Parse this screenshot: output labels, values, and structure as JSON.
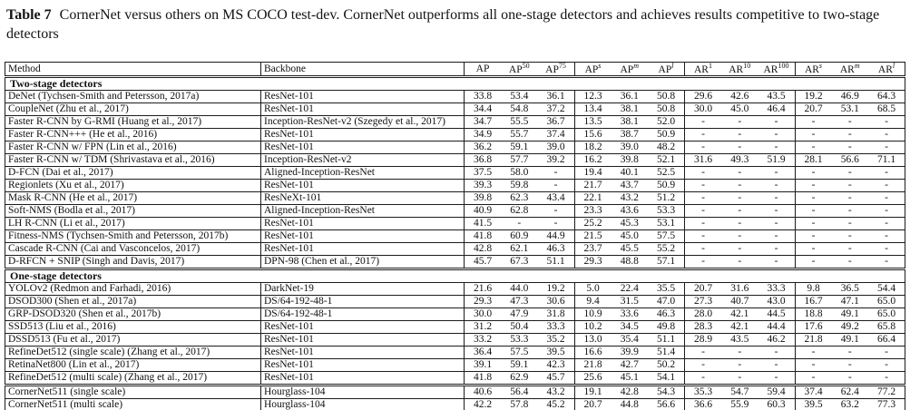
{
  "caption": {
    "label": "Table 7",
    "text": "CornerNet versus others on MS COCO test-dev. CornerNet outperforms all one-stage detectors and achieves results competitive to two-stage detectors"
  },
  "table": {
    "text_columns": [
      {
        "label": "Method"
      },
      {
        "label": "Backbone"
      }
    ],
    "metric_columns": [
      {
        "base": "AP",
        "sup": ""
      },
      {
        "base": "AP",
        "sup": "50"
      },
      {
        "base": "AP",
        "sup": "75"
      },
      {
        "base": "AP",
        "sup": "s"
      },
      {
        "base": "AP",
        "sup": "m"
      },
      {
        "base": "AP",
        "sup": "l"
      },
      {
        "base": "AR",
        "sup": "1"
      },
      {
        "base": "AR",
        "sup": "10"
      },
      {
        "base": "AR",
        "sup": "100"
      },
      {
        "base": "AR",
        "sup": "s"
      },
      {
        "base": "AR",
        "sup": "m"
      },
      {
        "base": "AR",
        "sup": "l"
      }
    ],
    "sections": [
      {
        "header": "Two-stage detectors",
        "rows": [
          {
            "method": "DeNet (Tychsen-Smith and Petersson, 2017a)",
            "backbone": "ResNet-101",
            "values": [
              "33.8",
              "53.4",
              "36.1",
              "12.3",
              "36.1",
              "50.8",
              "29.6",
              "42.6",
              "43.5",
              "19.2",
              "46.9",
              "64.3"
            ]
          },
          {
            "method": "CoupleNet (Zhu et al., 2017)",
            "backbone": "ResNet-101",
            "values": [
              "34.4",
              "54.8",
              "37.2",
              "13.4",
              "38.1",
              "50.8",
              "30.0",
              "45.0",
              "46.4",
              "20.7",
              "53.1",
              "68.5"
            ]
          },
          {
            "method": "Faster R-CNN by G-RMI (Huang et al., 2017)",
            "backbone": "Inception-ResNet-v2 (Szegedy et al., 2017)",
            "values": [
              "34.7",
              "55.5",
              "36.7",
              "13.5",
              "38.1",
              "52.0",
              "-",
              "-",
              "-",
              "-",
              "-",
              "-"
            ]
          },
          {
            "method": "Faster R-CNN+++ (He et al., 2016)",
            "backbone": "ResNet-101",
            "values": [
              "34.9",
              "55.7",
              "37.4",
              "15.6",
              "38.7",
              "50.9",
              "-",
              "-",
              "-",
              "-",
              "-",
              "-"
            ]
          },
          {
            "method": "Faster R-CNN w/ FPN (Lin et al., 2016)",
            "backbone": "ResNet-101",
            "values": [
              "36.2",
              "59.1",
              "39.0",
              "18.2",
              "39.0",
              "48.2",
              "-",
              "-",
              "-",
              "-",
              "-",
              "-"
            ]
          },
          {
            "method": "Faster R-CNN w/ TDM (Shrivastava et al., 2016)",
            "backbone": "Inception-ResNet-v2",
            "values": [
              "36.8",
              "57.7",
              "39.2",
              "16.2",
              "39.8",
              "52.1",
              "31.6",
              "49.3",
              "51.9",
              "28.1",
              "56.6",
              "71.1"
            ]
          },
          {
            "method": "D-FCN (Dai et al., 2017)",
            "backbone": "Aligned-Inception-ResNet",
            "values": [
              "37.5",
              "58.0",
              "-",
              "19.4",
              "40.1",
              "52.5",
              "-",
              "-",
              "-",
              "-",
              "-",
              "-"
            ]
          },
          {
            "method": "Regionlets (Xu et al., 2017)",
            "backbone": "ResNet-101",
            "values": [
              "39.3",
              "59.8",
              "-",
              "21.7",
              "43.7",
              "50.9",
              "-",
              "-",
              "-",
              "-",
              "-",
              "-"
            ]
          },
          {
            "method": "Mask R-CNN (He et al., 2017)",
            "backbone": "ResNeXt-101",
            "values": [
              "39.8",
              "62.3",
              "43.4",
              "22.1",
              "43.2",
              "51.2",
              "-",
              "-",
              "-",
              "-",
              "-",
              "-"
            ]
          },
          {
            "method": "Soft-NMS (Bodla et al., 2017)",
            "backbone": "Aligned-Inception-ResNet",
            "values": [
              "40.9",
              "62.8",
              "-",
              "23.3",
              "43.6",
              "53.3",
              "-",
              "-",
              "-",
              "-",
              "-",
              "-"
            ]
          },
          {
            "method": "LH R-CNN (Li et al., 2017)",
            "backbone": "ResNet-101",
            "values": [
              "41.5",
              "-",
              "-",
              "25.2",
              "45.3",
              "53.1",
              "-",
              "-",
              "-",
              "-",
              "-",
              "-"
            ]
          },
          {
            "method": "Fitness-NMS (Tychsen-Smith and Petersson, 2017b)",
            "backbone": "ResNet-101",
            "values": [
              "41.8",
              "60.9",
              "44.9",
              "21.5",
              "45.0",
              "57.5",
              "-",
              "-",
              "-",
              "-",
              "-",
              "-"
            ]
          },
          {
            "method": "Cascade R-CNN (Cai and Vasconcelos, 2017)",
            "backbone": "ResNet-101",
            "values": [
              "42.8",
              "62.1",
              "46.3",
              "23.7",
              "45.5",
              "55.2",
              "-",
              "-",
              "-",
              "-",
              "-",
              "-"
            ]
          },
          {
            "method": "D-RFCN + SNIP (Singh and Davis, 2017)",
            "backbone": "DPN-98 (Chen et al., 2017)",
            "values": [
              "45.7",
              "67.3",
              "51.1",
              "29.3",
              "48.8",
              "57.1",
              "-",
              "-",
              "-",
              "-",
              "-",
              "-"
            ]
          }
        ]
      },
      {
        "header": "One-stage detectors",
        "rows": [
          {
            "method": "YOLOv2 (Redmon and Farhadi, 2016)",
            "backbone": "DarkNet-19",
            "values": [
              "21.6",
              "44.0",
              "19.2",
              "5.0",
              "22.4",
              "35.5",
              "20.7",
              "31.6",
              "33.3",
              "9.8",
              "36.5",
              "54.4"
            ]
          },
          {
            "method": "DSOD300 (Shen et al., 2017a)",
            "backbone": "DS/64-192-48-1",
            "values": [
              "29.3",
              "47.3",
              "30.6",
              "9.4",
              "31.5",
              "47.0",
              "27.3",
              "40.7",
              "43.0",
              "16.7",
              "47.1",
              "65.0"
            ]
          },
          {
            "method": "GRP-DSOD320 (Shen et al., 2017b)",
            "backbone": "DS/64-192-48-1",
            "values": [
              "30.0",
              "47.9",
              "31.8",
              "10.9",
              "33.6",
              "46.3",
              "28.0",
              "42.1",
              "44.5",
              "18.8",
              "49.1",
              "65.0"
            ]
          },
          {
            "method": "SSD513 (Liu et al., 2016)",
            "backbone": "ResNet-101",
            "values": [
              "31.2",
              "50.4",
              "33.3",
              "10.2",
              "34.5",
              "49.8",
              "28.3",
              "42.1",
              "44.4",
              "17.6",
              "49.2",
              "65.8"
            ]
          },
          {
            "method": "DSSD513 (Fu et al., 2017)",
            "backbone": "ResNet-101",
            "values": [
              "33.2",
              "53.3",
              "35.2",
              "13.0",
              "35.4",
              "51.1",
              "28.9",
              "43.5",
              "46.2",
              "21.8",
              "49.1",
              "66.4"
            ]
          },
          {
            "method": "RefineDet512 (single scale) (Zhang et al., 2017)",
            "backbone": "ResNet-101",
            "values": [
              "36.4",
              "57.5",
              "39.5",
              "16.6",
              "39.9",
              "51.4",
              "-",
              "-",
              "-",
              "-",
              "-",
              "-"
            ]
          },
          {
            "method": "RetinaNet800 (Lin et al., 2017)",
            "backbone": "ResNet-101",
            "values": [
              "39.1",
              "59.1",
              "42.3",
              "21.8",
              "42.7",
              "50.2",
              "-",
              "-",
              "-",
              "-",
              "-",
              "-"
            ]
          },
          {
            "method": "RefineDet512 (multi scale) (Zhang et al., 2017)",
            "backbone": "ResNet-101",
            "values": [
              "41.8",
              "62.9",
              "45.7",
              "25.6",
              "45.1",
              "54.1",
              "-",
              "-",
              "-",
              "-",
              "-",
              "-"
            ]
          },
          {
            "method": "CornerNet511 (single scale)",
            "backbone": "Hourglass-104",
            "strong_rule_before": true,
            "values": [
              "40.6",
              "56.4",
              "43.2",
              "19.1",
              "42.8",
              "54.3",
              "35.3",
              "54.7",
              "59.4",
              "37.4",
              "62.4",
              "77.2"
            ]
          },
          {
            "method": "CornerNet511 (multi scale)",
            "backbone": "Hourglass-104",
            "values": [
              "42.2",
              "57.8",
              "45.2",
              "20.7",
              "44.8",
              "56.6",
              "36.6",
              "55.9",
              "60.3",
              "39.5",
              "63.2",
              "77.3"
            ]
          }
        ]
      }
    ]
  }
}
